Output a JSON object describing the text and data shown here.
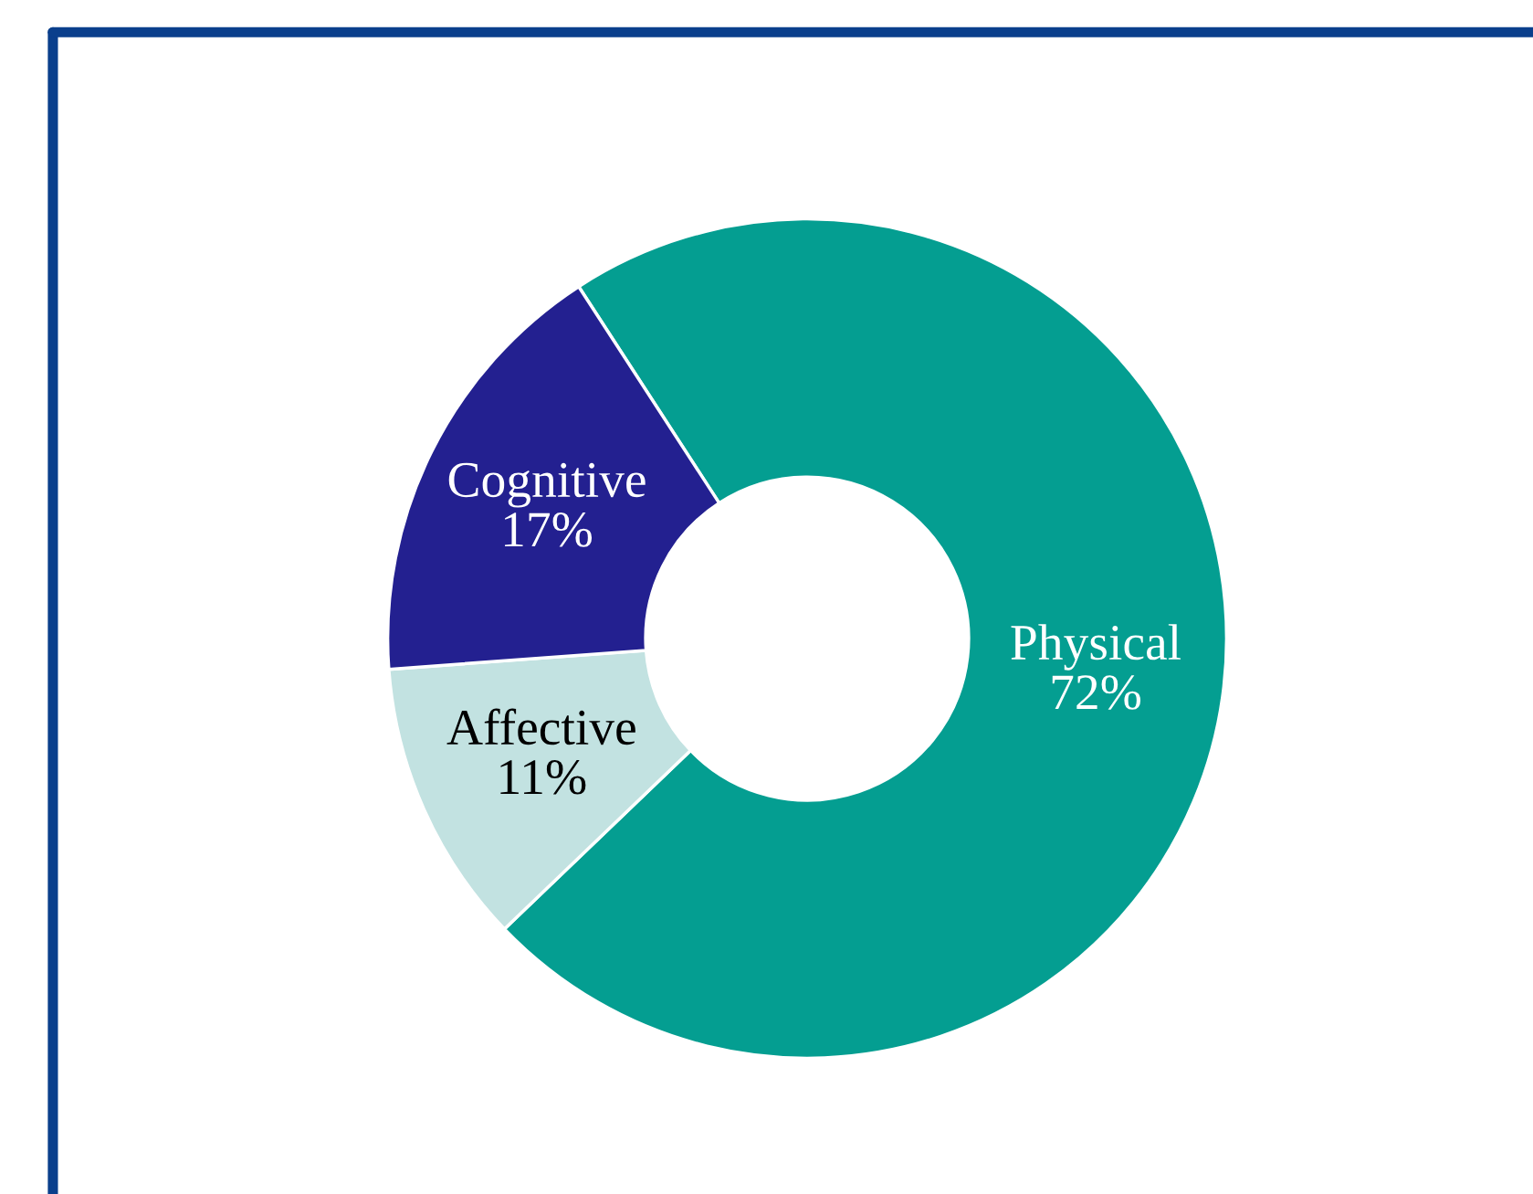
{
  "chart_data": {
    "type": "donut",
    "categories": [
      "Physical",
      "Affective",
      "Cognitive"
    ],
    "values": [
      72,
      11,
      17
    ],
    "colors": [
      "#049e91",
      "#c2e2e1",
      "#232090"
    ],
    "value_labels": [
      "72%",
      "11%",
      "17%"
    ],
    "legend": false
  }
}
